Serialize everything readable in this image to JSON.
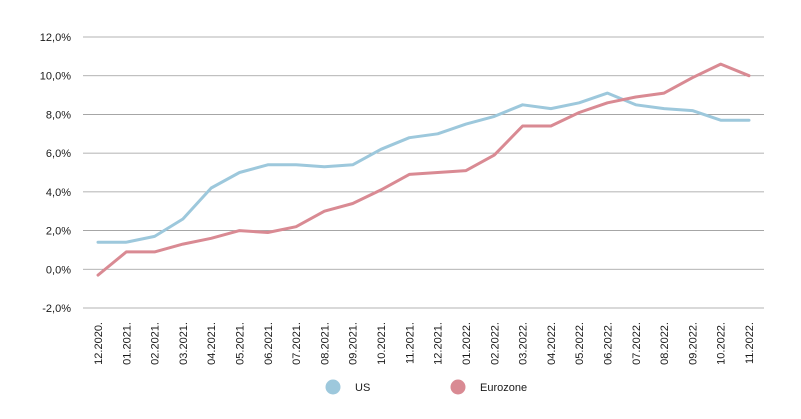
{
  "chart_data": {
    "type": "line",
    "title": "",
    "xlabel": "",
    "ylabel": "",
    "ylim": [
      -2,
      12
    ],
    "y_ticks": [
      -2,
      0,
      2,
      4,
      6,
      8,
      10,
      12
    ],
    "y_tick_labels": [
      "-2,0%",
      "0,0%",
      "2,0%",
      "4,0%",
      "6,0%",
      "8,0%",
      "10,0%",
      "12,0%"
    ],
    "grid": true,
    "legend_position": "bottom",
    "categories": [
      "12.2020.",
      "01.2021.",
      "02.2021.",
      "03.2021.",
      "04.2021.",
      "05.2021.",
      "06.2021.",
      "07.2021.",
      "08.2021.",
      "09.2021.",
      "10.2021.",
      "11.2021.",
      "12.2021.",
      "01.2022.",
      "02.2022.",
      "03.2022.",
      "04.2022.",
      "05.2022.",
      "06.2022.",
      "07.2022.",
      "08.2022.",
      "09.2022.",
      "10.2022.",
      "11.2022."
    ],
    "series": [
      {
        "name": "US",
        "color": "#9dc8dc",
        "values": [
          1.4,
          1.4,
          1.7,
          2.6,
          4.2,
          5.0,
          5.4,
          5.4,
          5.3,
          5.4,
          6.2,
          6.8,
          7.0,
          7.5,
          7.9,
          8.5,
          8.3,
          8.6,
          9.1,
          8.5,
          8.3,
          8.2,
          7.7,
          7.7
        ]
      },
      {
        "name": "Eurozone",
        "color": "#d98a93",
        "values": [
          -0.3,
          0.9,
          0.9,
          1.3,
          1.6,
          2.0,
          1.9,
          2.2,
          3.0,
          3.4,
          4.1,
          4.9,
          5.0,
          5.1,
          5.9,
          7.4,
          7.4,
          8.1,
          8.6,
          8.9,
          9.1,
          9.9,
          10.6,
          10.0
        ]
      }
    ]
  }
}
